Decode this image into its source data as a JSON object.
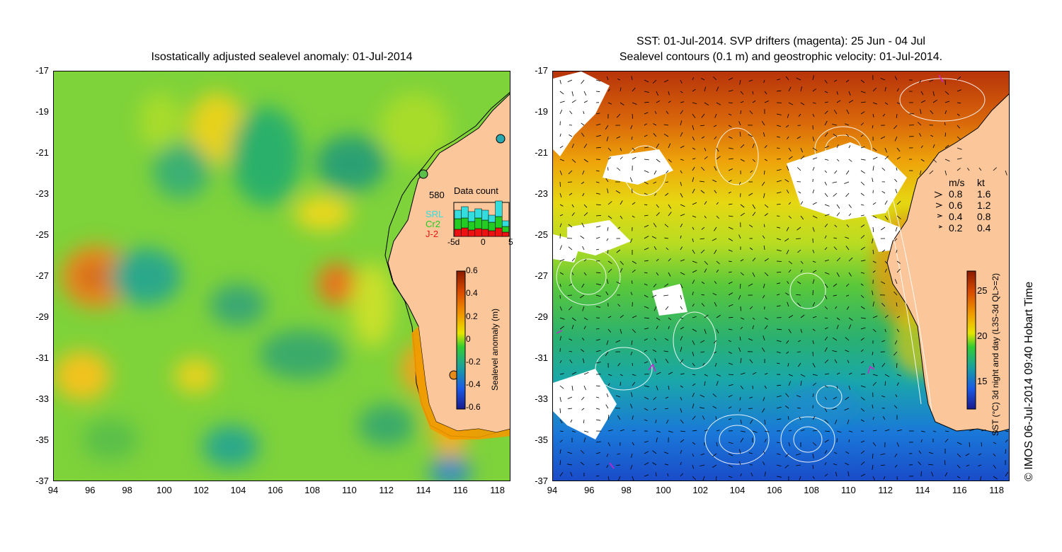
{
  "left_map": {
    "title": "Isostatically adjusted sealevel anomaly: 01-Jul-2014",
    "y_ticks": [
      "-17",
      "-19",
      "-21",
      "-23",
      "-25",
      "-27",
      "-29",
      "-31",
      "-33",
      "-35",
      "-37"
    ],
    "x_ticks": [
      "94",
      "96",
      "98",
      "100",
      "102",
      "104",
      "106",
      "108",
      "110",
      "112",
      "114",
      "116",
      "118"
    ],
    "colorbar": {
      "title": "Sealevel anomaly (m)",
      "labels": [
        "0.6",
        "0.4",
        "0.2",
        "0",
        "-0.2",
        "-0.4",
        "-0.6"
      ],
      "colors": [
        "#8b1a00",
        "#d84a00",
        "#f29a00",
        "#e6e600",
        "#33cc33",
        "#1aa0a0",
        "#1a5ae6",
        "#1a1a8c"
      ]
    },
    "data_count": {
      "title": "Data count",
      "max_label": "580",
      "sources": [
        "SRL",
        "Cr2",
        "J-2"
      ],
      "source_colors": [
        "#33dddd",
        "#22cc22",
        "#ee1111"
      ],
      "x_labels": [
        "-5d",
        "0",
        "5"
      ]
    }
  },
  "right_map": {
    "title_line1": "SST: 01-Jul-2014. SVP drifters (magenta): 25 Jun - 04 Jul",
    "title_line2": "Sealevel contours (0.1 m) and geostrophic velocity: 01-Jul-2014.",
    "y_ticks": [
      "-17",
      "-19",
      "-21",
      "-23",
      "-25",
      "-27",
      "-29",
      "-31",
      "-33",
      "-35",
      "-37"
    ],
    "x_ticks": [
      "94",
      "96",
      "98",
      "100",
      "102",
      "104",
      "106",
      "108",
      "110",
      "112",
      "114",
      "116",
      "118"
    ],
    "colorbar": {
      "title": "SST (°C) 3d night and day (L3S-3d QL>=2)",
      "labels": [
        "25",
        "20",
        "15"
      ],
      "colors": [
        "#8b1a00",
        "#d84a00",
        "#f2a000",
        "#e6e600",
        "#33cc33",
        "#1aa0a0",
        "#1a5ae6",
        "#1a1a8c"
      ]
    },
    "speed_legend": {
      "header_ms": "m/s",
      "header_kt": "kt",
      "rows": [
        {
          "ms": "0.8",
          "kt": "1.6"
        },
        {
          "ms": "0.6",
          "kt": "1.2"
        },
        {
          "ms": "0.4",
          "kt": "0.8"
        },
        {
          "ms": "0.2",
          "kt": "0.4"
        }
      ]
    }
  },
  "credit": "© IMOS 06-Jul-2014 09:40 Hobart Time",
  "colors": {
    "land": "#fbc79a",
    "coast": "#000000"
  }
}
